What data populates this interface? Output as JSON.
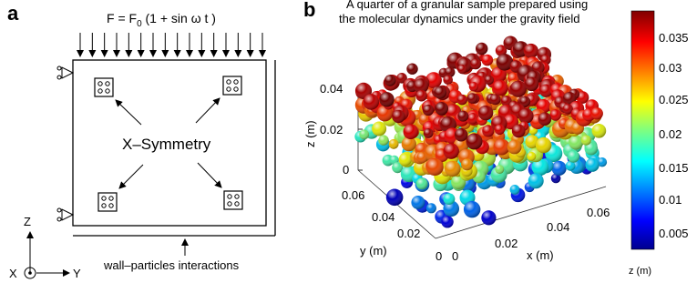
{
  "panel_a": {
    "label": "a",
    "force_prefix": "F = F",
    "force_sub": "0",
    "force_suffix": " (1 + sin ω t )",
    "symmetry": "X–Symmetry",
    "wall_label": "wall–particles interactions",
    "axis_z": "Z",
    "axis_x": "X",
    "axis_y": "Y"
  },
  "panel_b": {
    "label": "b",
    "title_line1": "A quarter of a granular sample prepared using",
    "title_line2": "the molecular dynamics under the gravity field",
    "z_axis_label": "z (m)",
    "y_axis_label": "y (m)",
    "x_axis_label": "x (m)",
    "z_ticks": [
      "0.04",
      "0.02",
      "0"
    ],
    "y_ticks": [
      "0.06",
      "0.04",
      "0.02",
      "0"
    ],
    "x_ticks": [
      "0",
      "0.02",
      "0.04",
      "0.06"
    ],
    "colorbar_ticks": [
      "0.035",
      "0.03",
      "0.025",
      "0.02",
      "0.015",
      "0.01",
      "0.005"
    ],
    "colorbar_label": "z (m)"
  }
}
